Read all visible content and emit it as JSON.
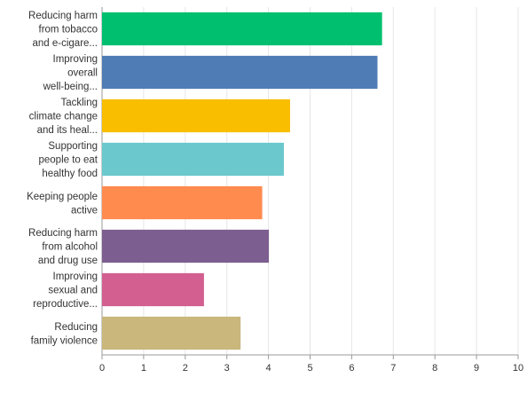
{
  "chart_data": {
    "type": "bar",
    "orientation": "horizontal",
    "categories": [
      [
        "Reducing harm",
        "from tobacco",
        "and e-cigare..."
      ],
      [
        "Improving",
        "overall",
        "well-being..."
      ],
      [
        "Tackling",
        "climate change",
        "and its heal..."
      ],
      [
        "Supporting",
        "people to eat",
        "healthy food"
      ],
      [
        "Keeping people",
        "active"
      ],
      [
        "Reducing harm",
        "from alcohol",
        "and drug use"
      ],
      [
        "Improving",
        "sexual and",
        "reproductive..."
      ],
      [
        "Reducing",
        "family violence"
      ]
    ],
    "values": [
      6.73,
      6.62,
      4.52,
      4.37,
      3.85,
      4.01,
      2.45,
      3.33
    ],
    "colors": [
      "#00bf6f",
      "#507cb6",
      "#f9be00",
      "#6bc8cd",
      "#ff8b4f",
      "#7d5e90",
      "#d25f90",
      "#c9b77c"
    ],
    "xlim": [
      0,
      10
    ],
    "xticks": [
      "0",
      "1",
      "2",
      "3",
      "4",
      "5",
      "6",
      "7",
      "8",
      "9",
      "10"
    ],
    "grid": true
  }
}
